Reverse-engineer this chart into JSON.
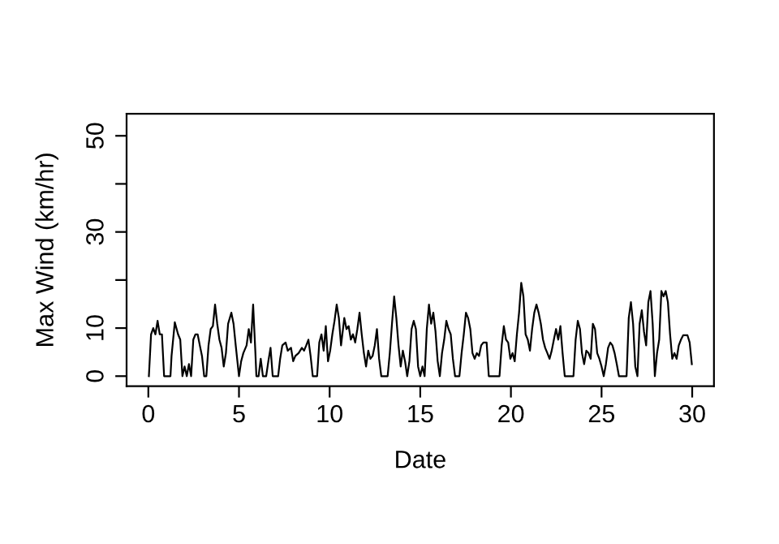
{
  "chart_data": {
    "type": "line",
    "xlabel": "Date",
    "ylabel": "Max Wind (km/hr)",
    "xlim": [
      -1.2,
      31.2
    ],
    "ylim": [
      -2.1,
      54.6
    ],
    "xticks": [
      0,
      5,
      10,
      15,
      20,
      25,
      30
    ],
    "yticks": [
      0,
      10,
      {
        "value": 20,
        "label": null
      },
      30,
      {
        "value": 40,
        "label": null
      },
      50
    ],
    "grid": false,
    "marker": "none",
    "line_style": "solid",
    "series": [
      {
        "color": "#000000",
        "x": [
          0.03,
          0.15,
          0.27,
          0.39,
          0.51,
          0.63,
          0.75,
          0.87,
          1.22,
          1.28,
          1.46,
          1.64,
          1.76,
          1.88,
          2.0,
          2.12,
          2.24,
          2.36,
          2.48,
          2.6,
          2.72,
          2.84,
          2.96,
          3.08,
          3.2,
          3.32,
          3.44,
          3.56,
          3.68,
          3.8,
          3.92,
          4.04,
          4.16,
          4.28,
          4.4,
          4.58,
          4.7,
          4.82,
          5.0,
          5.12,
          5.24,
          5.42,
          5.54,
          5.66,
          5.78,
          5.9,
          5.96,
          6.08,
          6.2,
          6.32,
          6.5,
          6.62,
          6.74,
          6.86,
          7.16,
          7.27,
          7.39,
          7.57,
          7.69,
          7.87,
          7.99,
          8.11,
          8.29,
          8.47,
          8.59,
          8.71,
          8.83,
          8.95,
          9.07,
          9.31,
          9.43,
          9.55,
          9.67,
          9.79,
          9.91,
          10.03,
          10.15,
          10.27,
          10.39,
          10.51,
          10.63,
          10.81,
          10.93,
          11.05,
          11.17,
          11.29,
          11.41,
          11.53,
          11.65,
          11.77,
          11.89,
          12.01,
          12.13,
          12.25,
          12.37,
          12.49,
          12.61,
          12.73,
          12.85,
          13.2,
          13.32,
          13.44,
          13.56,
          13.68,
          13.8,
          13.92,
          14.04,
          14.16,
          14.28,
          14.4,
          14.52,
          14.64,
          14.76,
          14.88,
          15.0,
          15.12,
          15.24,
          15.36,
          15.48,
          15.6,
          15.72,
          15.84,
          15.96,
          16.08,
          16.2,
          16.32,
          16.44,
          16.56,
          16.68,
          16.8,
          16.92,
          17.16,
          17.28,
          17.4,
          17.52,
          17.64,
          17.76,
          17.88,
          18.0,
          18.12,
          18.24,
          18.36,
          18.48,
          18.66,
          18.78,
          19.37,
          19.49,
          19.61,
          19.73,
          19.85,
          19.97,
          20.09,
          20.21,
          20.33,
          20.45,
          20.57,
          20.69,
          20.81,
          20.93,
          21.05,
          21.17,
          21.29,
          21.41,
          21.53,
          21.65,
          21.77,
          21.89,
          22.01,
          22.13,
          22.25,
          22.37,
          22.49,
          22.61,
          22.73,
          22.85,
          22.97,
          23.45,
          23.57,
          23.69,
          23.81,
          23.92,
          24.04,
          24.16,
          24.28,
          24.4,
          24.52,
          24.64,
          24.76,
          24.88,
          25.0,
          25.12,
          25.24,
          25.36,
          25.48,
          25.6,
          25.72,
          25.84,
          25.96,
          26.38,
          26.5,
          26.62,
          26.74,
          26.86,
          26.98,
          27.1,
          27.22,
          27.34,
          27.46,
          27.58,
          27.7,
          27.82,
          27.94,
          28.06,
          28.18,
          28.3,
          28.42,
          28.54,
          28.66,
          28.78,
          28.9,
          29.02,
          29.14,
          29.26,
          29.38,
          29.5,
          29.74,
          29.86,
          29.98
        ],
        "values": [
          0,
          8.7,
          10.0,
          8.7,
          11.5,
          8.7,
          8.7,
          0,
          0,
          4.2,
          11.2,
          8.7,
          7.6,
          0,
          2.0,
          0,
          2.5,
          0,
          7.6,
          8.7,
          8.7,
          6.4,
          4.2,
          0,
          0,
          6.4,
          9.8,
          10.4,
          14.9,
          10.9,
          7.6,
          5.9,
          2.0,
          4.8,
          10.9,
          13.2,
          10.9,
          6.4,
          0,
          3.1,
          4.8,
          6.4,
          9.8,
          7.0,
          14.9,
          5.3,
          0,
          0,
          3.6,
          0,
          0,
          3.1,
          5.9,
          0,
          0,
          3.6,
          6.4,
          7.0,
          5.3,
          5.9,
          3.1,
          4.2,
          4.8,
          5.9,
          5.3,
          6.4,
          7.6,
          4.2,
          0,
          0,
          7.0,
          8.7,
          5.3,
          10.4,
          3.1,
          5.3,
          8.7,
          11.5,
          14.9,
          12.1,
          6.4,
          12.1,
          9.8,
          10.4,
          7.6,
          8.7,
          7.0,
          9.8,
          13.2,
          8.7,
          4.8,
          2.0,
          5.3,
          3.6,
          4.2,
          6.4,
          9.8,
          3.6,
          0,
          0,
          4.8,
          10.9,
          16.6,
          12.1,
          6.4,
          2.0,
          5.3,
          3.1,
          0,
          3.1,
          9.8,
          11.5,
          9.8,
          2.0,
          0,
          2.0,
          0,
          9.8,
          14.9,
          10.9,
          13.2,
          9.3,
          3.1,
          0,
          4.8,
          7.6,
          11.5,
          9.8,
          8.7,
          3.6,
          0,
          0,
          4.8,
          8.7,
          13.2,
          12.1,
          9.8,
          4.8,
          3.6,
          4.8,
          4.2,
          6.4,
          7.0,
          7.0,
          0,
          0,
          6.4,
          10.4,
          7.6,
          7.0,
          3.6,
          4.8,
          3.1,
          8.7,
          13.2,
          19.4,
          16.6,
          8.7,
          7.6,
          5.3,
          9.8,
          13.2,
          14.9,
          13.2,
          10.9,
          7.6,
          5.9,
          4.8,
          3.6,
          5.3,
          7.6,
          9.8,
          7.6,
          10.4,
          4.8,
          0,
          0,
          7.6,
          11.5,
          9.8,
          4.8,
          2.5,
          5.3,
          4.8,
          3.6,
          10.9,
          9.8,
          4.8,
          3.6,
          2.0,
          0,
          2.5,
          5.9,
          7.0,
          6.4,
          4.8,
          2.5,
          0,
          0,
          12.1,
          15.4,
          10.9,
          2.0,
          0,
          10.9,
          13.7,
          9.3,
          6.4,
          15.4,
          17.7,
          10.9,
          0,
          4.8,
          7.6,
          17.7,
          16.6,
          17.7,
          15.4,
          8.7,
          3.6,
          4.8,
          3.6,
          6.4,
          7.6,
          8.5,
          8.5,
          7.0,
          2.5
        ]
      }
    ]
  }
}
